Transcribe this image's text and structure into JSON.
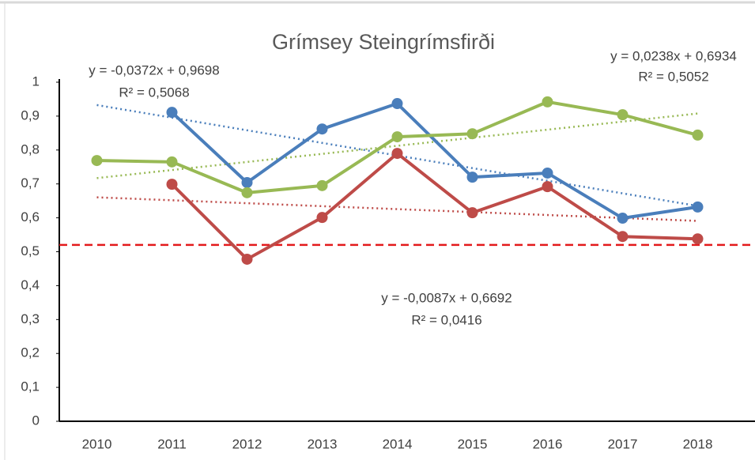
{
  "chart_data": {
    "type": "line",
    "title": "Grímsey Steingrímsfirði",
    "categories": [
      "2010",
      "2011",
      "2012",
      "2013",
      "2014",
      "2015",
      "2016",
      "2017",
      "2018"
    ],
    "series": [
      {
        "color": "#4a7ebb",
        "values": [
          null,
          0.911,
          0.704,
          0.862,
          0.937,
          0.72,
          0.732,
          0.599,
          0.632
        ]
      },
      {
        "color": "#98b954",
        "values": [
          0.769,
          0.765,
          0.674,
          0.695,
          0.839,
          0.848,
          0.942,
          0.904,
          0.844
        ]
      },
      {
        "color": "#be4b48",
        "values": [
          null,
          0.699,
          0.478,
          0.601,
          0.79,
          0.615,
          0.692,
          0.545,
          0.538
        ]
      }
    ],
    "trendlines": [
      {
        "color": "#4a7ebb",
        "slope": -0.0372,
        "intercept": 0.9698,
        "equation": "y = -0,0372x + 0,9698",
        "r_squared": 0.5068,
        "r_squared_label": "R² = 0,5068"
      },
      {
        "color": "#98b954",
        "slope": 0.0238,
        "intercept": 0.6934,
        "equation": "y = 0,0238x + 0,6934",
        "r_squared": 0.5052,
        "r_squared_label": "R² = 0,5052"
      },
      {
        "color": "#be4b48",
        "slope": -0.0087,
        "intercept": 0.6692,
        "equation": "y = -0,0087x + 0,6692",
        "r_squared": 0.0416,
        "r_squared_label": "R² = 0,0416"
      }
    ],
    "reference_line": {
      "value": 0.52,
      "color": "#e31a1c"
    },
    "ylim": [
      0,
      1
    ],
    "yticks": [
      0,
      {
        "value": 0.1,
        "label": "0,1"
      },
      {
        "value": 0.2,
        "label": "0,2"
      },
      {
        "value": 0.3,
        "label": "0,3"
      },
      {
        "value": 0.4,
        "label": "0,4"
      },
      {
        "value": 0.5,
        "label": "0,5"
      },
      {
        "value": 0.6,
        "label": "0,6"
      },
      {
        "value": 0.7,
        "label": "0,7"
      },
      {
        "value": 0.8,
        "label": "0,8"
      },
      {
        "value": 0.9,
        "label": "0,9"
      },
      1
    ],
    "grid": false
  }
}
